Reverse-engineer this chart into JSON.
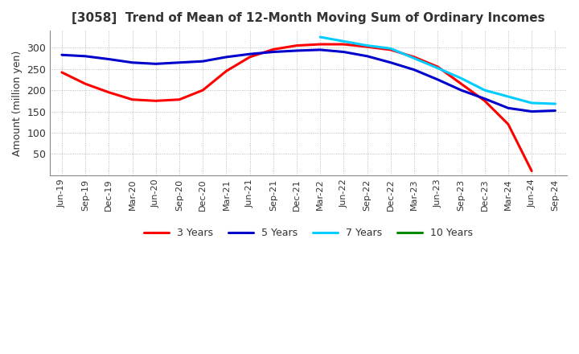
{
  "title": "[3058]  Trend of Mean of 12-Month Moving Sum of Ordinary Incomes",
  "ylabel": "Amount (million yen)",
  "yticks": [
    50,
    100,
    150,
    200,
    250,
    300
  ],
  "ylim": [
    0,
    340
  ],
  "background_color": "#ffffff",
  "grid_color": "#aaaaaa",
  "legend": [
    "3 Years",
    "5 Years",
    "7 Years",
    "10 Years"
  ],
  "line_colors": [
    "#ff0000",
    "#0000cc",
    "#00ccff",
    "#008800"
  ],
  "x_labels": [
    "Jun-19",
    "Sep-19",
    "Dec-19",
    "Mar-20",
    "Jun-20",
    "Sep-20",
    "Dec-20",
    "Mar-21",
    "Jun-21",
    "Sep-21",
    "Dec-21",
    "Mar-22",
    "Jun-22",
    "Sep-22",
    "Dec-22",
    "Mar-23",
    "Jun-23",
    "Sep-23",
    "Dec-23",
    "Mar-24",
    "Jun-24",
    "Sep-24"
  ],
  "series_3y": [
    242,
    215,
    195,
    178,
    175,
    178,
    200,
    245,
    278,
    296,
    305,
    308,
    308,
    302,
    295,
    278,
    255,
    215,
    175,
    120,
    10,
    null
  ],
  "series_5y": [
    283,
    280,
    273,
    265,
    262,
    265,
    268,
    278,
    285,
    290,
    293,
    295,
    290,
    280,
    265,
    248,
    225,
    200,
    180,
    158,
    150,
    152
  ],
  "series_7y": [
    null,
    null,
    null,
    null,
    null,
    null,
    null,
    null,
    null,
    null,
    null,
    325,
    315,
    305,
    298,
    275,
    252,
    228,
    200,
    185,
    170,
    168
  ],
  "series_10y": [
    null,
    null,
    null,
    null,
    null,
    null,
    null,
    null,
    null,
    null,
    null,
    null,
    null,
    null,
    null,
    null,
    null,
    null,
    null,
    null,
    null,
    null
  ]
}
